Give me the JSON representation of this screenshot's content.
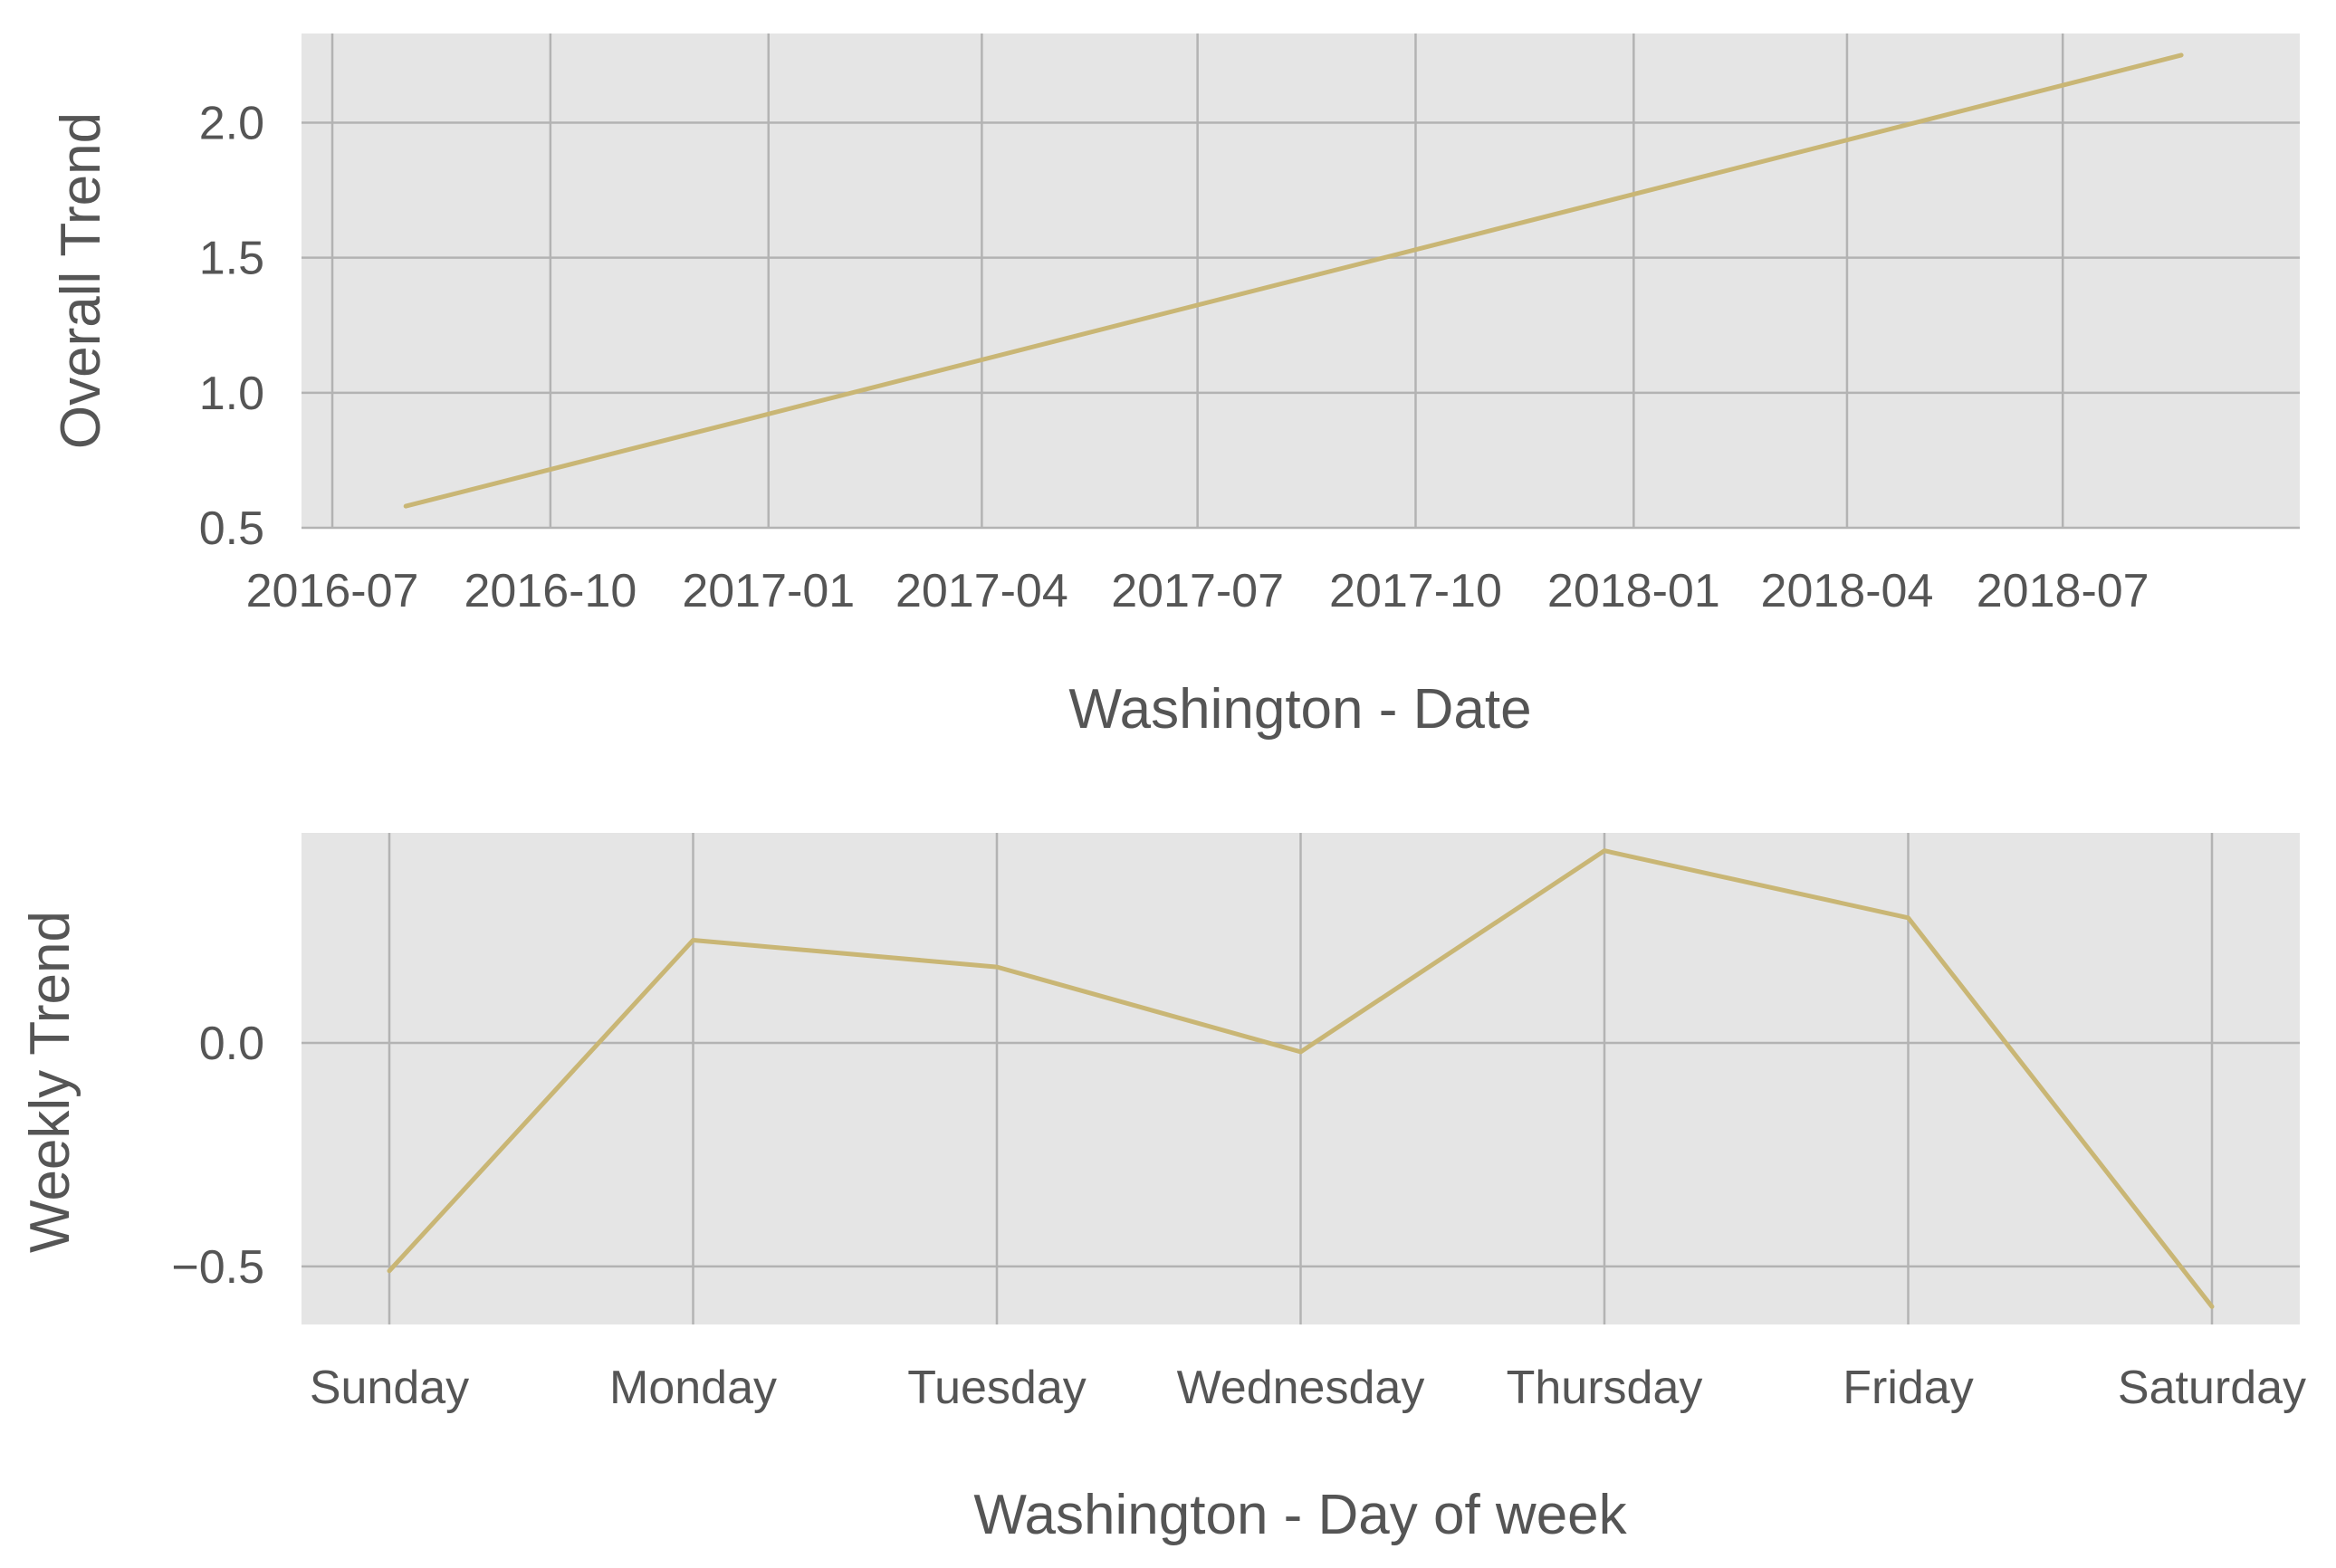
{
  "chart_data": [
    {
      "type": "line",
      "xlabel": "Washington - Date",
      "ylabel": "Overall Trend",
      "x_type": "date",
      "x": [
        "2016-08-01",
        "2018-08-20"
      ],
      "series": [
        {
          "values": [
            0.58,
            2.25
          ]
        }
      ],
      "xlim": [
        "2016-06-18",
        "2018-10-09"
      ],
      "ylim": [
        0.5,
        2.33
      ],
      "x_ticks": [
        "2016-07-01",
        "2016-10-01",
        "2017-01-01",
        "2017-04-01",
        "2017-07-01",
        "2017-10-01",
        "2018-01-01",
        "2018-04-01",
        "2018-07-01"
      ],
      "x_tick_labels": [
        "2016-07",
        "2016-10",
        "2017-01",
        "2017-04",
        "2017-07",
        "2017-10",
        "2018-01",
        "2018-04",
        "2018-07"
      ],
      "y_ticks": [
        0.5,
        1.0,
        1.5,
        2.0
      ],
      "y_tick_labels": [
        "0.5",
        "1.0",
        "1.5",
        "2.0"
      ],
      "grid": true,
      "line_color": "#c9b675",
      "background": "#e5e5e5"
    },
    {
      "type": "line",
      "xlabel": "Washington - Day of week",
      "ylabel": "Weekly Trend",
      "categories": [
        "Sunday",
        "Monday",
        "Tuesday",
        "Wednesday",
        "Thursday",
        "Friday",
        "Saturday"
      ],
      "series": [
        {
          "values": [
            -0.51,
            0.23,
            0.17,
            -0.02,
            0.43,
            0.28,
            -0.59
          ]
        }
      ],
      "ylim": [
        -0.63,
        0.47
      ],
      "y_ticks": [
        -0.5,
        0.0
      ],
      "y_tick_labels": [
        "−0.5",
        "0.0"
      ],
      "grid": true,
      "line_color": "#c9b675",
      "background": "#e5e5e5"
    }
  ],
  "colors": {
    "grid": "#b3b3b3",
    "text": "#555555"
  }
}
